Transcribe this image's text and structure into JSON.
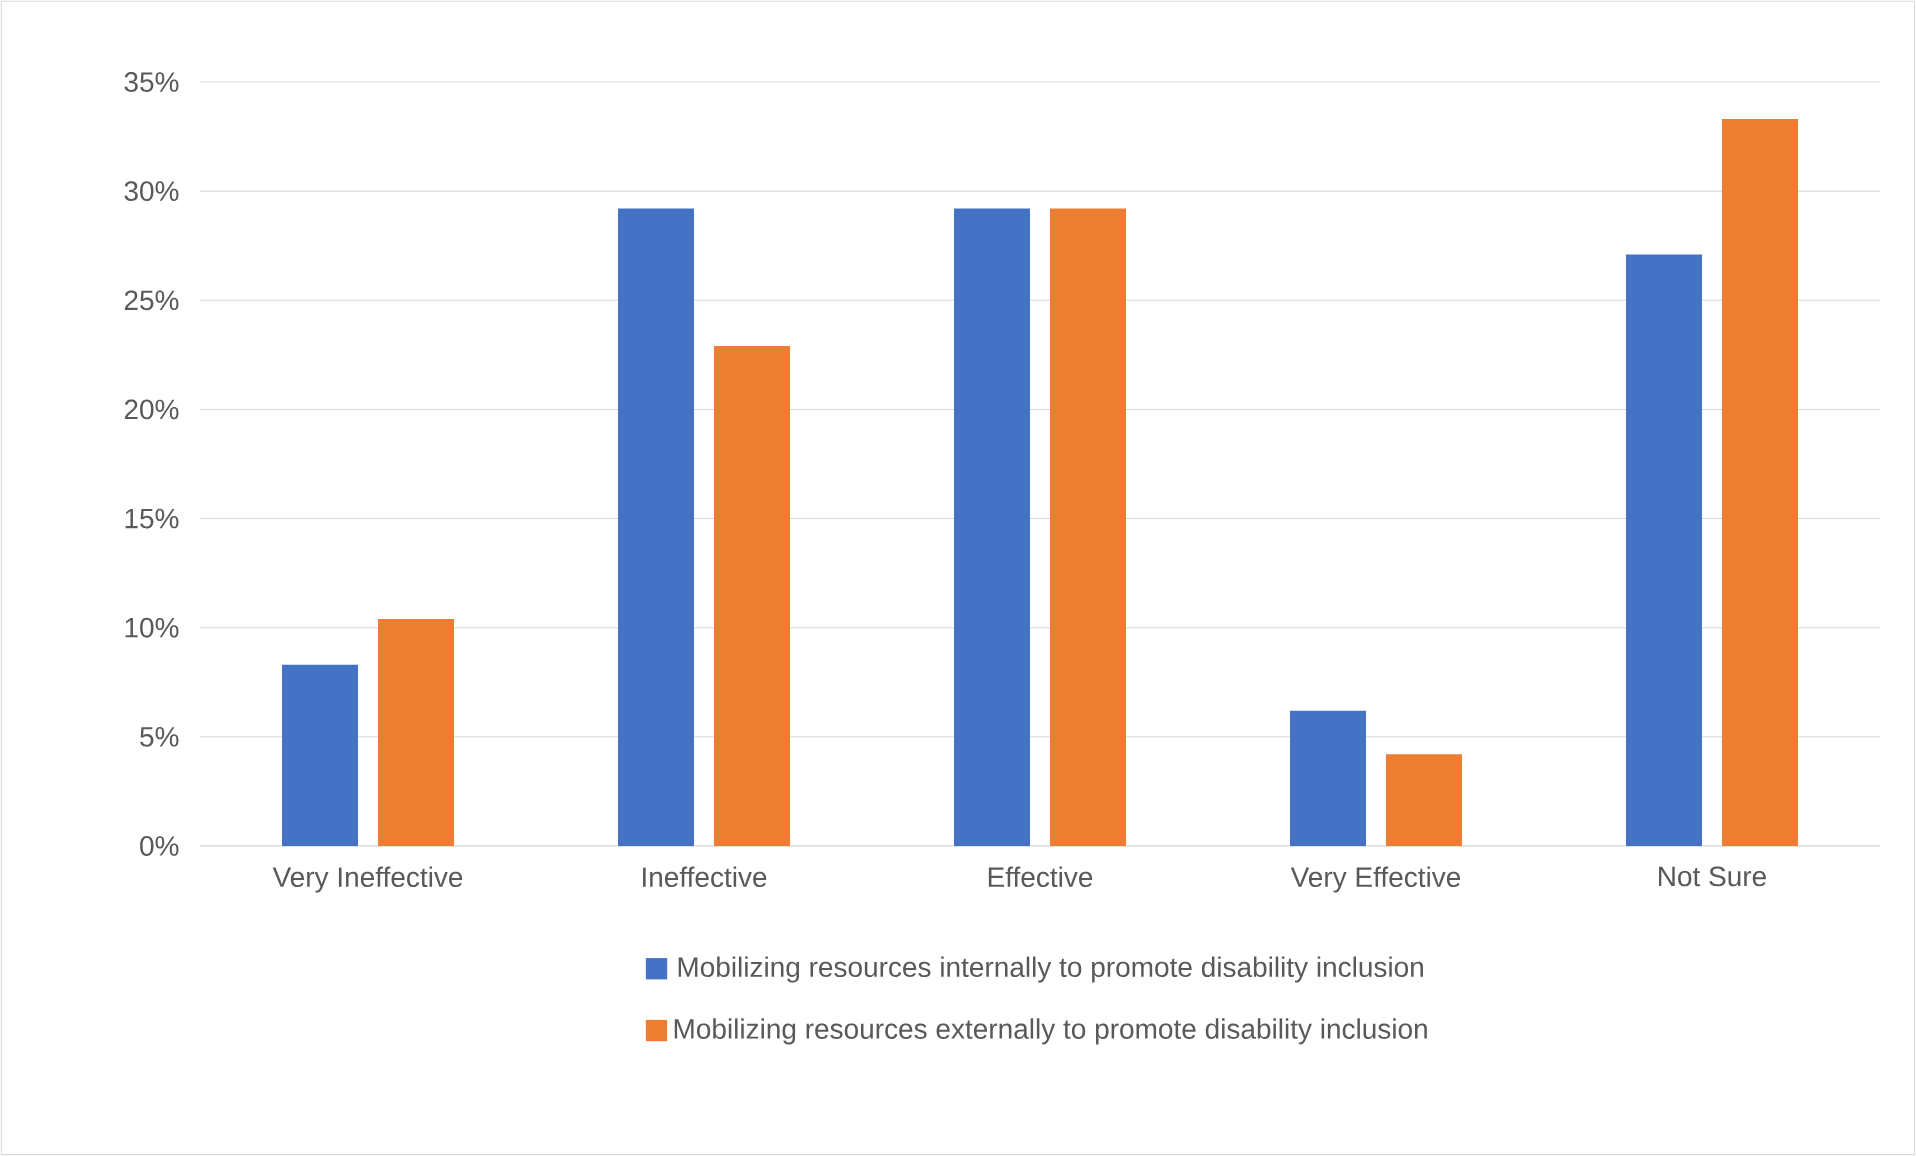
{
  "chart_data": {
    "type": "bar",
    "categories": [
      "Very Ineffective",
      "Ineffective",
      "Effective",
      "Very Effective",
      "Not Sure"
    ],
    "series": [
      {
        "name": "Mobilizing resources internally to promote disability inclusion",
        "color": "#4472c4",
        "values": [
          8.3,
          29.2,
          29.2,
          6.2,
          27.1
        ]
      },
      {
        "name": "Mobilizing resources externally to promote disability inclusion",
        "color": "#ed7d31",
        "values": [
          10.4,
          22.9,
          29.2,
          4.2,
          33.3
        ]
      }
    ],
    "ylim": [
      0,
      35
    ],
    "yticks": [
      {
        "value": 0,
        "label": "0%"
      },
      {
        "value": 5,
        "label": "5%"
      },
      {
        "value": 10,
        "label": "10%"
      },
      {
        "value": 15,
        "label": "15%"
      },
      {
        "value": 20,
        "label": "20%"
      },
      {
        "value": 25,
        "label": "25%"
      },
      {
        "value": 30,
        "label": "30%"
      },
      {
        "value": 35,
        "label": "35%"
      }
    ],
    "grid": "y",
    "legend": "bottom"
  }
}
